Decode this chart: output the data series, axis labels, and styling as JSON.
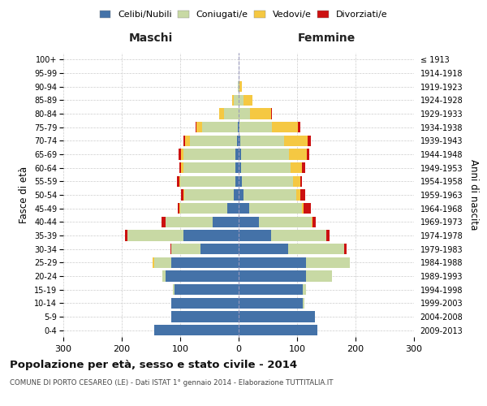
{
  "age_groups": [
    "0-4",
    "5-9",
    "10-14",
    "15-19",
    "20-24",
    "25-29",
    "30-34",
    "35-39",
    "40-44",
    "45-49",
    "50-54",
    "55-59",
    "60-64",
    "65-69",
    "70-74",
    "75-79",
    "80-84",
    "85-89",
    "90-94",
    "95-99",
    "100+"
  ],
  "birth_years": [
    "2009-2013",
    "2004-2008",
    "1999-2003",
    "1994-1998",
    "1989-1993",
    "1984-1988",
    "1979-1983",
    "1974-1978",
    "1969-1973",
    "1964-1968",
    "1959-1963",
    "1954-1958",
    "1949-1953",
    "1944-1948",
    "1939-1943",
    "1934-1938",
    "1929-1933",
    "1924-1928",
    "1919-1923",
    "1914-1918",
    "≤ 1913"
  ],
  "male": {
    "celibi": [
      145,
      115,
      115,
      110,
      125,
      115,
      65,
      95,
      45,
      20,
      8,
      5,
      5,
      5,
      3,
      2,
      0,
      0,
      0,
      0,
      0
    ],
    "coniugati": [
      0,
      0,
      0,
      2,
      5,
      30,
      50,
      95,
      80,
      80,
      85,
      95,
      90,
      90,
      80,
      60,
      25,
      8,
      2,
      0,
      0
    ],
    "vedovi": [
      0,
      0,
      0,
      0,
      0,
      2,
      0,
      0,
      0,
      1,
      1,
      2,
      3,
      4,
      8,
      10,
      8,
      3,
      0,
      0,
      0
    ],
    "divorziati": [
      0,
      0,
      0,
      0,
      0,
      0,
      2,
      4,
      7,
      3,
      5,
      4,
      4,
      4,
      4,
      2,
      0,
      0,
      0,
      0,
      0
    ]
  },
  "female": {
    "nubili": [
      135,
      130,
      110,
      110,
      115,
      115,
      85,
      55,
      35,
      18,
      8,
      5,
      4,
      4,
      3,
      2,
      0,
      0,
      0,
      0,
      0
    ],
    "coniugate": [
      0,
      0,
      2,
      5,
      45,
      75,
      95,
      95,
      90,
      90,
      90,
      88,
      85,
      82,
      75,
      55,
      20,
      8,
      2,
      0,
      0
    ],
    "vedove": [
      0,
      0,
      0,
      0,
      0,
      0,
      0,
      0,
      2,
      3,
      8,
      12,
      20,
      30,
      40,
      45,
      35,
      15,
      3,
      0,
      0
    ],
    "divorziate": [
      0,
      0,
      0,
      0,
      0,
      0,
      5,
      5,
      5,
      12,
      8,
      4,
      5,
      5,
      5,
      4,
      2,
      0,
      0,
      0,
      0
    ]
  },
  "colors": {
    "celibi": "#4472a8",
    "coniugati": "#c8d9a4",
    "vedovi": "#f5c842",
    "divorziati": "#cc1111"
  },
  "xlim": 300,
  "title": "Popolazione per età, sesso e stato civile - 2014",
  "subtitle": "COMUNE DI PORTO CESAREO (LE) - Dati ISTAT 1° gennaio 2014 - Elaborazione TUTTITALIA.IT",
  "xlabel_left": "Maschi",
  "xlabel_right": "Femmine",
  "ylabel_left": "Fasce di età",
  "ylabel_right": "Anni di nascita",
  "legend_labels": [
    "Celibi/Nubili",
    "Coniugati/e",
    "Vedovi/e",
    "Divorziati/e"
  ],
  "background_color": "#ffffff",
  "grid_color": "#cccccc"
}
